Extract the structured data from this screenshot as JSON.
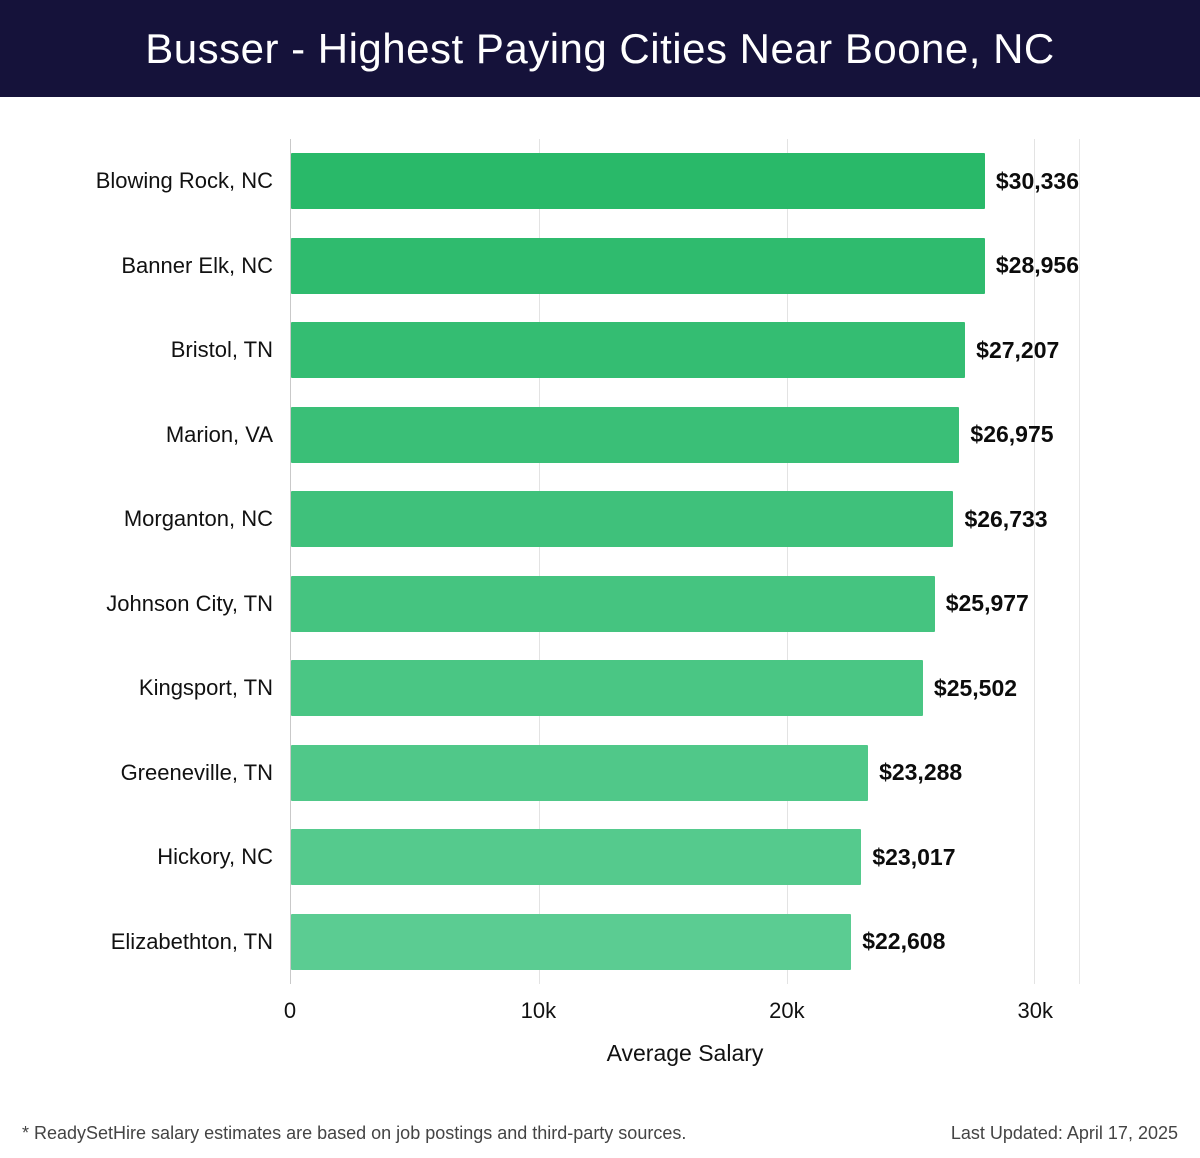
{
  "header": {
    "title": "Busser - Highest Paying Cities Near Boone, NC",
    "bg_color": "#15123a"
  },
  "chart_data": {
    "type": "bar",
    "orientation": "horizontal",
    "title": "Busser - Highest Paying Cities Near Boone, NC",
    "categories": [
      "Blowing Rock, NC",
      "Banner Elk, NC",
      "Bristol, TN",
      "Marion, VA",
      "Morganton, NC",
      "Johnson City, TN",
      "Kingsport, TN",
      "Greeneville, TN",
      "Hickory, NC",
      "Elizabethton, TN"
    ],
    "values": [
      30336,
      28956,
      27207,
      26975,
      26733,
      25977,
      25502,
      23288,
      23017,
      22608
    ],
    "value_labels": [
      "$30,336",
      "$28,956",
      "$27,207",
      "$26,975",
      "$26,733",
      "$25,977",
      "$25,502",
      "$23,288",
      "$23,017",
      "$22,608"
    ],
    "xlabel": "Average Salary",
    "ylabel": "",
    "xlim": [
      0,
      31800
    ],
    "x_ticks": [
      {
        "value": 0,
        "label": "0"
      },
      {
        "value": 10000,
        "label": "10k"
      },
      {
        "value": 20000,
        "label": "20k"
      },
      {
        "value": 30000,
        "label": "30k"
      }
    ],
    "grid": true,
    "legend": "none",
    "bar_color_start": "#29b969",
    "bar_color_end": "#5bcc92"
  },
  "footer": {
    "note": "* ReadySetHire salary estimates are based on job postings and third-party sources.",
    "updated": "Last Updated: April 17, 2025"
  }
}
